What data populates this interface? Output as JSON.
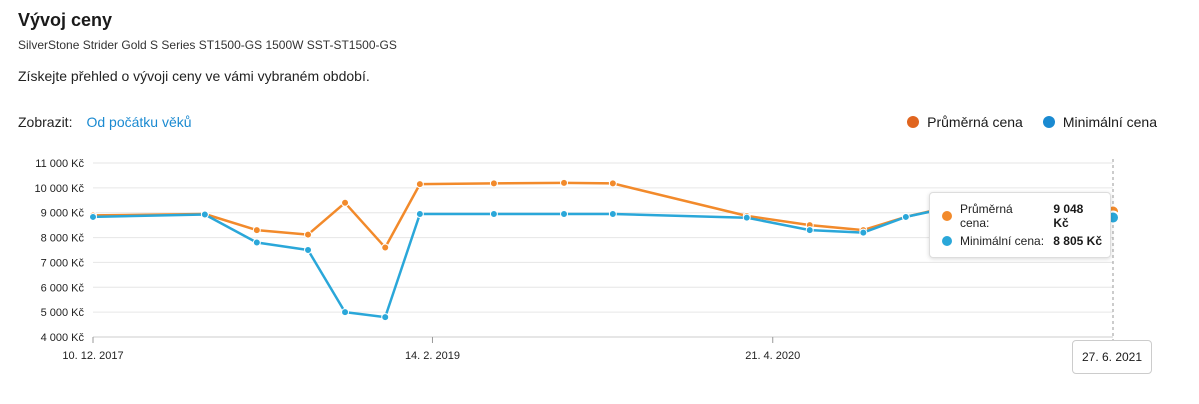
{
  "header": {
    "title": "Vývoj ceny",
    "subtitle": "SilverStone Strider Gold S Series ST1500-GS 1500W SST-ST1500-GS",
    "description": "Získejte přehled o vývoji ceny ve vámi vybraném období."
  },
  "controls": {
    "show_label": "Zobrazit:",
    "range_link": "Od počátku věků"
  },
  "legend": {
    "avg_label": "Průměrná cena",
    "min_label": "Minimální cena"
  },
  "colors": {
    "avg": "#f28a2b",
    "min": "#2aa7d9",
    "avg_legend": "#e0651f",
    "min_legend": "#1a8ad1",
    "grid": "#e6e6e6"
  },
  "tooltip": {
    "avg_label": "Průměrná cena:",
    "avg_value": "9 048 Kč",
    "min_label": "Minimální cena:",
    "min_value": "8 805 Kč",
    "date": "27. 6. 2021"
  },
  "chart_data": {
    "type": "line",
    "x": [
      "2017-12-10",
      "2018-05-01",
      "2018-07-06",
      "2018-09-09",
      "2018-10-26",
      "2018-12-16",
      "2019-01-29",
      "2019-05-03",
      "2019-07-31",
      "2019-10-01",
      "2020-03-19",
      "2020-06-07",
      "2020-08-14",
      "2020-10-07",
      "2020-11-26",
      "2021-02-09",
      "2021-04-07",
      "2021-06-27"
    ],
    "x_ticks": [
      "10. 12. 2017",
      "14. 2. 2019",
      "21. 4. 2020"
    ],
    "y_ticks": [
      "4 000 Kč",
      "5 000 Kč",
      "6 000 Kč",
      "7 000 Kč",
      "8 000 Kč",
      "9 000 Kč",
      "10 000 Kč",
      "11 000 Kč"
    ],
    "ylim": [
      4000,
      11000
    ],
    "series": [
      {
        "name": "Průměrná cena",
        "values": [
          8890,
          8950,
          8300,
          8120,
          9400,
          7600,
          10150,
          10180,
          10200,
          10180,
          8870,
          8500,
          8300,
          8830,
          9200,
          8600,
          8950,
          9048
        ]
      },
      {
        "name": "Minimální cena",
        "values": [
          8830,
          8930,
          7800,
          7500,
          5000,
          4800,
          8950,
          8950,
          8950,
          8950,
          8800,
          8300,
          8200,
          8830,
          9170,
          8500,
          8950,
          8805
        ]
      }
    ],
    "grid": true,
    "legend_position": "top-right"
  }
}
